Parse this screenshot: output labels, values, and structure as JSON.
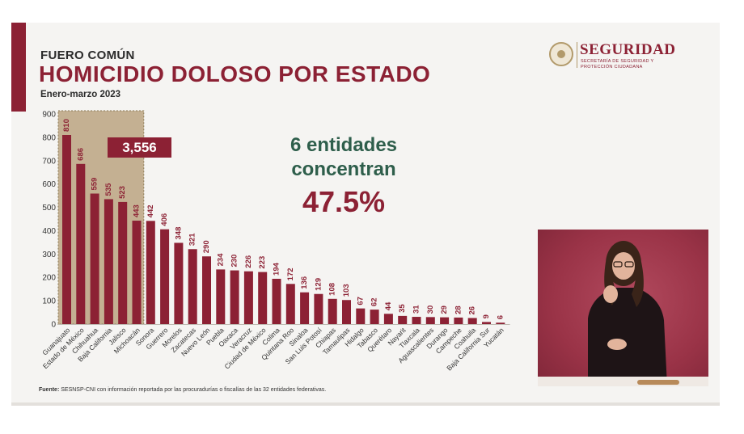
{
  "header": {
    "kicker": "FUERO COMÚN",
    "title": "HOMICIDIO DOLOSO POR ESTADO",
    "period": "Enero-marzo 2023"
  },
  "logo": {
    "name": "SEGURIDAD",
    "subtitle": "SECRETARÍA DE SEGURIDAD Y PROTECCIÓN CIUDADANA"
  },
  "callout": {
    "line1": "6 entidades",
    "line2": "concentran",
    "percent": "47.5%"
  },
  "highlight": {
    "total": "3,556",
    "count": 6
  },
  "source": {
    "label": "Fuente:",
    "text": "SESNSP-CNI con información reportada por las procuradurías o fiscalías de las 32 entidades federativas."
  },
  "colors": {
    "bar": "#8c2134",
    "highlight_fill": "#c4b092",
    "highlight_border": "#8a7a55",
    "callout_green": "#2e5e4b"
  },
  "interpreter_window": {
    "icon": "sign-language-interpreter-video"
  },
  "chart_data": {
    "type": "bar",
    "title": "HOMICIDIO DOLOSO POR ESTADO",
    "xlabel": "",
    "ylabel": "",
    "ylim": [
      0,
      900
    ],
    "yticks": [
      0,
      100,
      200,
      300,
      400,
      500,
      600,
      700,
      800,
      900
    ],
    "grid": false,
    "categories": [
      "Guanajuato",
      "Estado de México",
      "Chihuahua",
      "Baja California",
      "Jalisco",
      "Michoacán",
      "Sonora",
      "Guerrero",
      "Morelos",
      "Zacatecas",
      "Nuevo León",
      "Puebla",
      "Oaxaca",
      "Veracruz",
      "Ciudad de México",
      "Colima",
      "Quintana Roo",
      "Sinaloa",
      "San Luis Potosí",
      "Chiapas",
      "Tamaulipas",
      "Hidalgo",
      "Tabasco",
      "Querétaro",
      "Nayarit",
      "Tlaxcala",
      "Aguascalientes",
      "Durango",
      "Campeche",
      "Coahuila",
      "Baja California Sur",
      "Yucatán"
    ],
    "values": [
      810,
      686,
      559,
      535,
      523,
      443,
      442,
      406,
      348,
      321,
      290,
      234,
      230,
      226,
      223,
      194,
      172,
      136,
      129,
      108,
      103,
      67,
      62,
      44,
      35,
      31,
      30,
      29,
      28,
      26,
      9,
      6
    ]
  }
}
